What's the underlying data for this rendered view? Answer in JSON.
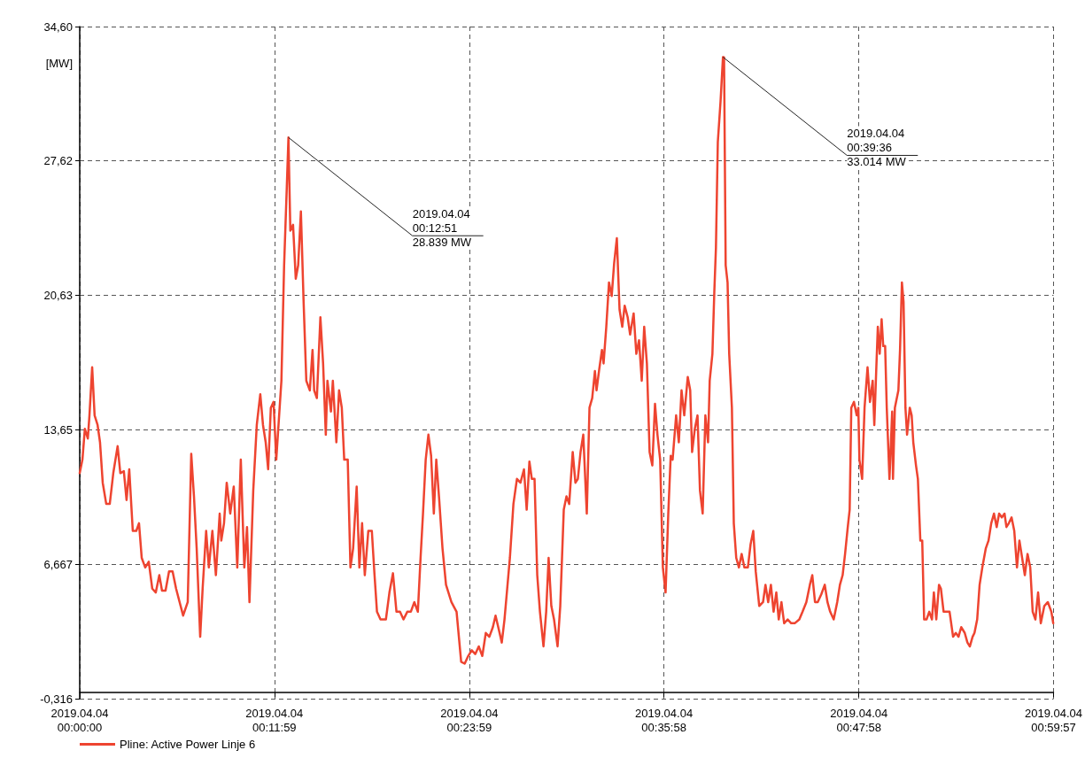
{
  "chart_data": {
    "type": "line",
    "ylabel": "[MW]",
    "x": [
      "2019-04-04T00:00:00",
      "2019-04-04T00:00:10",
      "2019-04-04T00:00:19",
      "2019-04-04T00:00:30",
      "2019-04-04T00:00:36",
      "2019-04-04T00:00:46",
      "2019-04-04T00:00:55",
      "2019-04-04T00:01:06",
      "2019-04-04T00:01:15",
      "2019-04-04T00:01:25",
      "2019-04-04T00:01:38",
      "2019-04-04T00:01:51",
      "2019-04-04T00:02:04",
      "2019-04-04T00:02:20",
      "2019-04-04T00:02:30",
      "2019-04-04T00:02:43",
      "2019-04-04T00:02:53",
      "2019-04-04T00:03:03",
      "2019-04-04T00:03:16",
      "2019-04-04T00:03:29",
      "2019-04-04T00:03:39",
      "2019-04-04T00:03:49",
      "2019-04-04T00:04:02",
      "2019-04-04T00:04:15",
      "2019-04-04T00:04:28",
      "2019-04-04T00:04:41",
      "2019-04-04T00:04:54",
      "2019-04-04T00:05:04",
      "2019-04-04T00:05:17",
      "2019-04-04T00:05:30",
      "2019-04-04T00:05:43",
      "2019-04-04T00:05:56",
      "2019-04-04T00:06:09",
      "2019-04-04T00:06:22",
      "2019-04-04T00:06:39",
      "2019-04-04T00:06:52",
      "2019-04-04T00:07:02",
      "2019-04-04T00:07:12",
      "2019-04-04T00:07:25",
      "2019-04-04T00:07:34",
      "2019-04-04T00:07:47",
      "2019-04-04T00:07:57",
      "2019-04-04T00:08:10",
      "2019-04-04T00:08:23",
      "2019-04-04T00:08:37",
      "2019-04-04T00:08:43",
      "2019-04-04T00:08:53",
      "2019-04-04T00:09:03",
      "2019-04-04T00:09:16",
      "2019-04-04T00:09:29",
      "2019-04-04T00:09:42",
      "2019-04-04T00:09:55",
      "2019-04-04T00:10:08",
      "2019-04-04T00:10:18",
      "2019-04-04T00:10:27",
      "2019-04-04T00:10:41",
      "2019-04-04T00:10:54",
      "2019-04-04T00:11:07",
      "2019-04-04T00:11:17",
      "2019-04-04T00:11:27",
      "2019-04-04T00:11:36",
      "2019-04-04T00:11:46",
      "2019-04-04T00:11:56",
      "2019-04-04T00:12:06",
      "2019-04-04T00:12:12",
      "2019-04-04T00:12:25",
      "2019-04-04T00:12:35",
      "2019-04-04T00:12:45",
      "2019-04-04T00:12:51",
      "2019-04-04T00:12:58",
      "2019-04-04T00:13:08",
      "2019-04-04T00:13:18",
      "2019-04-04T00:13:27",
      "2019-04-04T00:13:37",
      "2019-04-04T00:13:47",
      "2019-04-04T00:13:57",
      "2019-04-04T00:14:10",
      "2019-04-04T00:14:20",
      "2019-04-04T00:14:26",
      "2019-04-04T00:14:36",
      "2019-04-04T00:14:49",
      "2019-04-04T00:14:59",
      "2019-04-04T00:15:09",
      "2019-04-04T00:15:15",
      "2019-04-04T00:15:28",
      "2019-04-04T00:15:35",
      "2019-04-04T00:15:48",
      "2019-04-04T00:15:58",
      "2019-04-04T00:16:08",
      "2019-04-04T00:16:17",
      "2019-04-04T00:16:30",
      "2019-04-04T00:16:40",
      "2019-04-04T00:16:50",
      "2019-04-04T00:17:03",
      "2019-04-04T00:17:13",
      "2019-04-04T00:17:23",
      "2019-04-04T00:17:33",
      "2019-04-04T00:17:46",
      "2019-04-04T00:17:59",
      "2019-04-04T00:18:09",
      "2019-04-04T00:18:18",
      "2019-04-04T00:18:31",
      "2019-04-04T00:18:51",
      "2019-04-04T00:19:04",
      "2019-04-04T00:19:17",
      "2019-04-04T00:19:30",
      "2019-04-04T00:19:43",
      "2019-04-04T00:19:56",
      "2019-04-04T00:20:10",
      "2019-04-04T00:20:23",
      "2019-04-04T00:20:36",
      "2019-04-04T00:20:49",
      "2019-04-04T00:20:59",
      "2019-04-04T00:21:08",
      "2019-04-04T00:21:18",
      "2019-04-04T00:21:28",
      "2019-04-04T00:21:38",
      "2019-04-04T00:21:48",
      "2019-04-04T00:21:57",
      "2019-04-04T00:22:07",
      "2019-04-04T00:22:20",
      "2019-04-04T00:22:33",
      "2019-04-04T00:22:53",
      "2019-04-04T00:23:12",
      "2019-04-04T00:23:29",
      "2019-04-04T00:23:42",
      "2019-04-04T00:23:55",
      "2019-04-04T00:24:08",
      "2019-04-04T00:24:21",
      "2019-04-04T00:24:34",
      "2019-04-04T00:24:47",
      "2019-04-04T00:25:00",
      "2019-04-04T00:25:13",
      "2019-04-04T00:25:26",
      "2019-04-04T00:25:36",
      "2019-04-04T00:25:46",
      "2019-04-04T00:25:59",
      "2019-04-04T00:26:09",
      "2019-04-04T00:26:19",
      "2019-04-04T00:26:29",
      "2019-04-04T00:26:42",
      "2019-04-04T00:26:55",
      "2019-04-04T00:27:08",
      "2019-04-04T00:27:21",
      "2019-04-04T00:27:31",
      "2019-04-04T00:27:41",
      "2019-04-04T00:27:50",
      "2019-04-04T00:28:00",
      "2019-04-04T00:28:10",
      "2019-04-04T00:28:20",
      "2019-04-04T00:28:33",
      "2019-04-04T00:28:43",
      "2019-04-04T00:28:52",
      "2019-04-04T00:29:02",
      "2019-04-04T00:29:12",
      "2019-04-04T00:29:25",
      "2019-04-04T00:29:35",
      "2019-04-04T00:29:48",
      "2019-04-04T00:29:58",
      "2019-04-04T00:30:08",
      "2019-04-04T00:30:21",
      "2019-04-04T00:30:31",
      "2019-04-04T00:30:40",
      "2019-04-04T00:30:50",
      "2019-04-04T00:31:00",
      "2019-04-04T00:31:13",
      "2019-04-04T00:31:23",
      "2019-04-04T00:31:33",
      "2019-04-04T00:31:43",
      "2019-04-04T00:31:49",
      "2019-04-04T00:31:59",
      "2019-04-04T00:32:09",
      "2019-04-04T00:32:15",
      "2019-04-04T00:32:25",
      "2019-04-04T00:32:35",
      "2019-04-04T00:32:45",
      "2019-04-04T00:32:54",
      "2019-04-04T00:33:04",
      "2019-04-04T00:33:14",
      "2019-04-04T00:33:24",
      "2019-04-04T00:33:33",
      "2019-04-04T00:33:44",
      "2019-04-04T00:33:53",
      "2019-04-04T00:34:06",
      "2019-04-04T00:34:16",
      "2019-04-04T00:34:26",
      "2019-04-04T00:34:36",
      "2019-04-04T00:34:45",
      "2019-04-04T00:34:55",
      "2019-04-04T00:35:05",
      "2019-04-04T00:35:15",
      "2019-04-04T00:35:25",
      "2019-04-04T00:35:34",
      "2019-04-04T00:35:44",
      "2019-04-04T00:35:54",
      "2019-04-04T00:36:04",
      "2019-04-04T00:36:14",
      "2019-04-04T00:36:23",
      "2019-04-04T00:36:30",
      "2019-04-04T00:36:43",
      "2019-04-04T00:36:53",
      "2019-04-04T00:37:03",
      "2019-04-04T00:37:13",
      "2019-04-04T00:37:26",
      "2019-04-04T00:37:35",
      "2019-04-04T00:37:42",
      "2019-04-04T00:37:52",
      "2019-04-04T00:38:02",
      "2019-04-04T00:38:11",
      "2019-04-04T00:38:21",
      "2019-04-04T00:38:31",
      "2019-04-04T00:38:41",
      "2019-04-04T00:38:47",
      "2019-04-04T00:38:57",
      "2019-04-04T00:39:04",
      "2019-04-04T00:39:10",
      "2019-04-04T00:39:17",
      "2019-04-04T00:39:27",
      "2019-04-04T00:39:36",
      "2019-04-04T00:39:40",
      "2019-04-04T00:39:46",
      "2019-04-04T00:39:53",
      "2019-04-04T00:39:59",
      "2019-04-04T00:40:09",
      "2019-04-04T00:40:16",
      "2019-04-04T00:40:25",
      "2019-04-04T00:40:35",
      "2019-04-04T00:40:45",
      "2019-04-04T00:40:55",
      "2019-04-04T00:41:08",
      "2019-04-04T00:41:18",
      "2019-04-04T00:41:28",
      "2019-04-04T00:41:37",
      "2019-04-04T00:41:50",
      "2019-04-04T00:42:04",
      "2019-04-04T00:42:13",
      "2019-04-04T00:42:23",
      "2019-04-04T00:42:33",
      "2019-04-04T00:42:43",
      "2019-04-04T00:42:53",
      "2019-04-04T00:43:02",
      "2019-04-04T00:43:12",
      "2019-04-04T00:43:22",
      "2019-04-04T00:43:35",
      "2019-04-04T00:43:48",
      "2019-04-04T00:44:01",
      "2019-04-04T00:44:18",
      "2019-04-04T00:44:30",
      "2019-04-04T00:44:44",
      "2019-04-04T00:44:57",
      "2019-04-04T00:45:06",
      "2019-04-04T00:45:16",
      "2019-04-04T00:45:26",
      "2019-04-04T00:45:39",
      "2019-04-04T00:45:52",
      "2019-04-04T00:46:02",
      "2019-04-04T00:46:12",
      "2019-04-04T00:46:25",
      "2019-04-04T00:46:38",
      "2019-04-04T00:46:48",
      "2019-04-04T00:46:58",
      "2019-04-04T00:47:07",
      "2019-04-04T00:47:17",
      "2019-04-04T00:47:24",
      "2019-04-04T00:47:30",
      "2019-04-04T00:47:40",
      "2019-04-04T00:47:50",
      "2019-04-04T00:47:56",
      "2019-04-04T00:48:00",
      "2019-04-04T00:48:10",
      "2019-04-04T00:48:19",
      "2019-04-04T00:48:30",
      "2019-04-04T00:48:39",
      "2019-04-04T00:48:49",
      "2019-04-04T00:48:55",
      "2019-04-04T00:49:02",
      "2019-04-04T00:49:08",
      "2019-04-04T00:49:15",
      "2019-04-04T00:49:22",
      "2019-04-04T00:49:28",
      "2019-04-04T00:49:35",
      "2019-04-04T00:49:41",
      "2019-04-04T00:49:51",
      "2019-04-04T00:50:01",
      "2019-04-04T00:50:04",
      "2019-04-04T00:50:11",
      "2019-04-04T00:50:24",
      "2019-04-04T00:50:30",
      "2019-04-04T00:50:37",
      "2019-04-04T00:50:43",
      "2019-04-04T00:50:50",
      "2019-04-04T00:50:56",
      "2019-04-04T00:51:06",
      "2019-04-04T00:51:13",
      "2019-04-04T00:51:19",
      "2019-04-04T00:51:29",
      "2019-04-04T00:51:36",
      "2019-04-04T00:51:45",
      "2019-04-04T00:51:52",
      "2019-04-04T00:51:59",
      "2019-04-04T00:52:08",
      "2019-04-04T00:52:18",
      "2019-04-04T00:52:28",
      "2019-04-04T00:52:35",
      "2019-04-04T00:52:44",
      "2019-04-04T00:52:54",
      "2019-04-04T00:53:01",
      "2019-04-04T00:53:11",
      "2019-04-04T00:53:20",
      "2019-04-04T00:53:33",
      "2019-04-04T00:53:46",
      "2019-04-04T00:53:56",
      "2019-04-04T00:54:06",
      "2019-04-04T00:54:16",
      "2019-04-04T00:54:29",
      "2019-04-04T00:54:39",
      "2019-04-04T00:54:48",
      "2019-04-04T00:54:58",
      "2019-04-04T00:55:05",
      "2019-04-04T00:55:15",
      "2019-04-04T00:55:24",
      "2019-04-04T00:55:34",
      "2019-04-04T00:55:47",
      "2019-04-04T00:55:57",
      "2019-04-04T00:56:07",
      "2019-04-04T00:56:17",
      "2019-04-04T00:56:27",
      "2019-04-04T00:56:36",
      "2019-04-04T00:56:46",
      "2019-04-04T00:56:56",
      "2019-04-04T00:57:03",
      "2019-04-04T00:57:12",
      "2019-04-04T00:57:22",
      "2019-04-04T00:57:32",
      "2019-04-04T00:57:42",
      "2019-04-04T00:57:51",
      "2019-04-04T00:58:01",
      "2019-04-04T00:58:11",
      "2019-04-04T00:58:21",
      "2019-04-04T00:58:31",
      "2019-04-04T00:58:40",
      "2019-04-04T00:58:50",
      "2019-04-04T00:59:00",
      "2019-04-04T00:59:10",
      "2019-04-04T00:59:23",
      "2019-04-04T00:59:36",
      "2019-04-04T00:59:49",
      "2019-04-04T00:59:56"
    ],
    "series": [
      {
        "name": "Pline: Active Power Linje 6",
        "color": "#ee4430",
        "values": [
          11.4,
          12.1,
          13.7,
          13.2,
          14.4,
          16.9,
          14.4,
          13.9,
          13.0,
          10.9,
          9.8,
          9.8,
          11.4,
          12.8,
          11.4,
          11.5,
          10.0,
          11.6,
          8.4,
          8.4,
          8.8,
          7.0,
          6.5,
          6.8,
          5.4,
          5.2,
          6.1,
          5.3,
          5.3,
          6.3,
          6.3,
          5.4,
          4.7,
          4.0,
          4.7,
          12.4,
          10.2,
          7.5,
          2.9,
          5.4,
          8.4,
          6.5,
          8.4,
          6.1,
          9.3,
          7.9,
          8.8,
          10.9,
          9.3,
          10.7,
          6.5,
          12.1,
          6.5,
          8.6,
          4.7,
          10.5,
          13.9,
          15.5,
          13.9,
          13.0,
          11.6,
          14.8,
          15.1,
          12.1,
          13.4,
          16.2,
          22.2,
          26.3,
          28.839,
          24.0,
          24.3,
          21.5,
          22.2,
          25.0,
          20.3,
          16.2,
          15.7,
          17.8,
          15.7,
          15.3,
          19.5,
          17.1,
          13.4,
          16.2,
          14.6,
          16.2,
          13.0,
          15.7,
          14.8,
          12.1,
          12.1,
          6.5,
          7.5,
          10.7,
          6.5,
          8.8,
          6.1,
          8.4,
          8.4,
          6.1,
          4.2,
          3.8,
          3.8,
          5.2,
          6.2,
          4.2,
          4.2,
          3.8,
          4.2,
          4.2,
          4.7,
          4.2,
          7.0,
          9.3,
          12.1,
          13.4,
          12.3,
          9.3,
          12.1,
          10.2,
          7.5,
          5.6,
          4.7,
          4.2,
          1.6,
          1.5,
          1.9,
          2.2,
          2.0,
          2.4,
          1.9,
          3.1,
          2.9,
          3.4,
          4.0,
          3.4,
          2.6,
          3.8,
          5.4,
          7.0,
          9.8,
          11.1,
          10.9,
          11.6,
          9.5,
          12.0,
          11.1,
          11.1,
          6.1,
          4.2,
          2.4,
          4.2,
          7.0,
          4.5,
          3.8,
          2.4,
          4.5,
          9.5,
          10.2,
          9.8,
          12.5,
          10.9,
          11.1,
          12.5,
          13.4,
          9.3,
          14.8,
          15.3,
          16.7,
          15.7,
          16.8,
          17.8,
          17.1,
          19.0,
          21.3,
          20.6,
          22.3,
          23.6,
          19.9,
          19.0,
          20.1,
          19.5,
          18.6,
          19.7,
          17.6,
          18.3,
          16.2,
          19.0,
          17.1,
          12.5,
          11.8,
          15.0,
          13.4,
          12.1,
          6.5,
          5.2,
          9.3,
          12.3,
          12.1,
          14.4,
          13.0,
          15.7,
          14.4,
          16.4,
          15.7,
          12.5,
          13.7,
          14.4,
          10.5,
          9.3,
          14.4,
          13.0,
          16.2,
          17.6,
          20.8,
          23.1,
          28.6,
          30.7,
          33.014,
          33.0,
          22.2,
          21.3,
          17.6,
          14.8,
          8.8,
          7.0,
          6.5,
          7.2,
          6.5,
          6.5,
          7.7,
          8.4,
          6.3,
          4.5,
          4.7,
          5.6,
          4.7,
          5.6,
          4.2,
          5.2,
          3.8,
          4.7,
          3.6,
          3.8,
          3.6,
          3.6,
          3.8,
          4.2,
          4.7,
          5.6,
          6.1,
          4.7,
          4.7,
          5.1,
          5.6,
          4.7,
          4.2,
          3.8,
          4.7,
          5.6,
          6.1,
          7.2,
          8.6,
          9.5,
          14.8,
          15.1,
          14.4,
          14.8,
          12.1,
          11.1,
          14.8,
          16.9,
          15.1,
          16.2,
          13.9,
          16.7,
          19.0,
          17.6,
          19.4,
          18.0,
          18.0,
          14.8,
          11.1,
          14.6,
          11.1,
          14.8,
          15.7,
          17.8,
          21.3,
          20.3,
          14.8,
          13.4,
          14.8,
          14.4,
          13.0,
          11.8,
          11.1,
          7.9,
          7.9,
          3.8,
          3.8,
          4.2,
          3.8,
          5.2,
          3.8,
          5.6,
          5.4,
          4.2,
          4.2,
          4.2,
          2.9,
          3.1,
          2.9,
          3.4,
          3.1,
          2.6,
          2.4,
          2.9,
          3.1,
          3.8,
          5.6,
          6.5,
          7.5,
          7.9,
          8.8,
          9.3,
          8.6,
          9.3,
          9.1,
          9.3,
          8.6,
          8.8,
          9.1,
          8.4,
          6.5,
          7.9,
          7.0,
          6.1,
          7.2,
          6.5,
          4.2,
          3.8,
          5.2,
          3.6,
          4.5,
          4.7,
          4.2,
          3.6
        ]
      }
    ],
    "xlim": [
      "2019-04-04T00:00:00",
      "2019-04-04T00:59:57"
    ],
    "xticks": [
      {
        "value": "2019-04-04T00:00:00",
        "label": "2019.04.04\n00:00:00"
      },
      {
        "value": "2019-04-04T00:11:59",
        "label": "2019.04.04\n00:11:59"
      },
      {
        "value": "2019-04-04T00:23:59",
        "label": "2019.04.04\n00:23:59"
      },
      {
        "value": "2019-04-04T00:35:58",
        "label": "2019.04.04\n00:35:58"
      },
      {
        "value": "2019-04-04T00:47:58",
        "label": "2019.04.04\n00:47:58"
      },
      {
        "value": "2019-04-04T00:59:57",
        "label": "2019.04.04\n00:59:57"
      }
    ],
    "ylim": [
      -0.316,
      34.6
    ],
    "yticks": [
      {
        "value": -0.316,
        "label": "-0,316"
      },
      {
        "value": 6.667,
        "label": "6,667"
      },
      {
        "value": 13.65,
        "label": "13,65"
      },
      {
        "value": 20.63,
        "label": "20,63"
      },
      {
        "value": 27.62,
        "label": "27,62"
      },
      {
        "value": 34.6,
        "label": "34,60"
      }
    ],
    "annotations": [
      {
        "text": "2019.04.04\n00:12:51\n28.839 MW",
        "x": "2019-04-04T00:12:51",
        "y": 28.839
      },
      {
        "text": "2019.04.04\n00:39:36\n33.014 MW",
        "x": "2019-04-04T00:39:36",
        "y": 33.014
      }
    ],
    "grid": true,
    "legend": "bottom left",
    "marker": "none",
    "line_style": "solid"
  }
}
